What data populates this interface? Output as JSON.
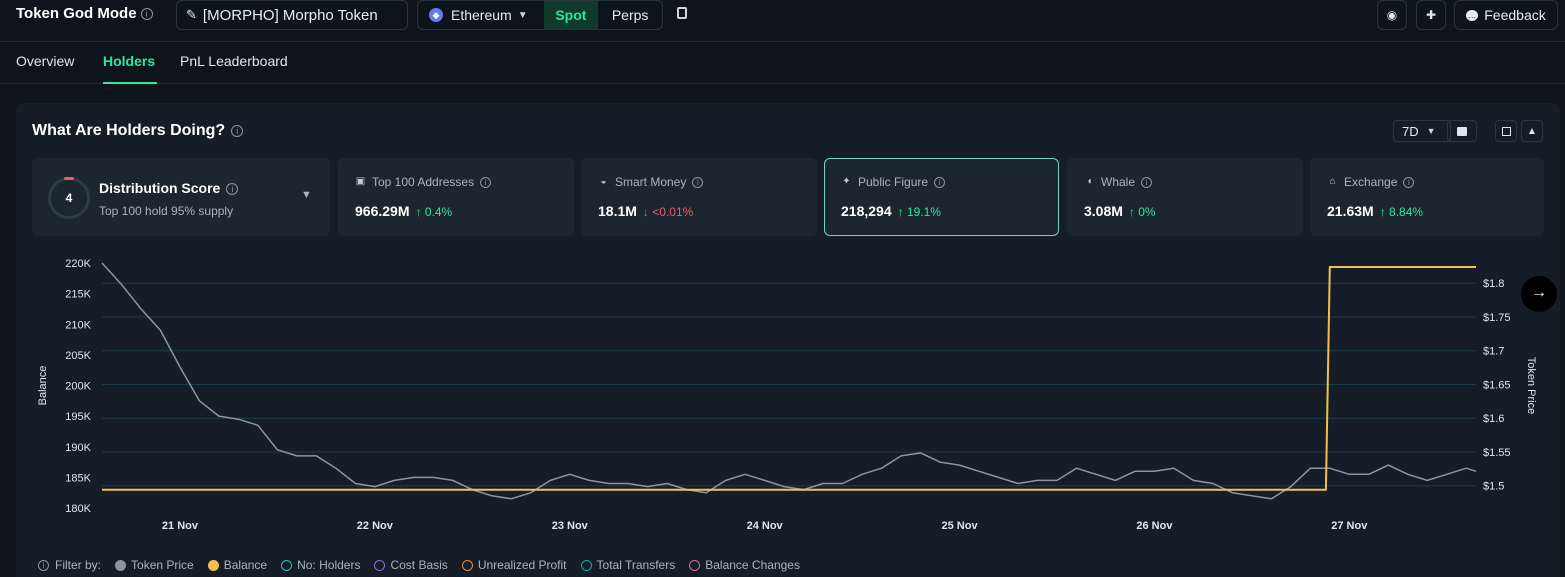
{
  "header": {
    "app_title": "Token God Mode",
    "token_label": "[MORPHO] Morpho Token",
    "chain": "Ethereum",
    "seg_spot": "Spot",
    "seg_perps": "Perps",
    "feedback_label": "Feedback"
  },
  "tabs": [
    {
      "label": "Overview"
    },
    {
      "label": "Holders"
    },
    {
      "label": "PnL Leaderboard"
    }
  ],
  "panel": {
    "title": "What Are Holders Doing?",
    "range": "7D",
    "distribution": {
      "score": "4",
      "title": "Distribution Score",
      "subtitle": "Top 100 hold 95% supply"
    },
    "cards": [
      {
        "label": "Top 100 Addresses",
        "value": "966.29M",
        "change": "↑ 0.4%",
        "dir": "up"
      },
      {
        "label": "Smart Money",
        "value": "18.1M",
        "change": "↓ <0.01%",
        "dir": "down"
      },
      {
        "label": "Public Figure",
        "value": "218,294",
        "change": "↑ 19.1%",
        "dir": "up"
      },
      {
        "label": "Whale",
        "value": "3.08M",
        "change": "↑ 0%",
        "dir": "up"
      },
      {
        "label": "Exchange",
        "value": "21.63M",
        "change": "↑ 8.84%",
        "dir": "up"
      }
    ],
    "filter_label": "Filter by:",
    "filters": [
      {
        "label": "Token Price",
        "color": "#8b96a3",
        "filled": true
      },
      {
        "label": "Balance",
        "color": "#f5c04a",
        "filled": true
      },
      {
        "label": "No: Holders",
        "color": "#2ec4b6",
        "filled": false
      },
      {
        "label": "Cost Basis",
        "color": "#8e6bd6",
        "filled": false
      },
      {
        "label": "Unrealized Profit",
        "color": "#f08a3c",
        "filled": false
      },
      {
        "label": "Total Transfers",
        "color": "#1fa39a",
        "filled": false
      },
      {
        "label": "Balance Changes",
        "color": "#d66ba8",
        "filled": false
      }
    ]
  },
  "chart_data": {
    "type": "line",
    "xlabel": "",
    "ylabel": "Balance",
    "y2label": "Token Price",
    "x_ticks": [
      "21 Nov",
      "22 Nov",
      "23 Nov",
      "24 Nov",
      "25 Nov",
      "26 Nov",
      "27 Nov"
    ],
    "y_ticks": [
      "220K",
      "215K",
      "210K",
      "205K",
      "200K",
      "195K",
      "190K",
      "185K",
      "180K"
    ],
    "y2_ticks": [
      "$1.8",
      "$1.75",
      "$1.7",
      "$1.65",
      "$1.6",
      "$1.55",
      "$1.5"
    ],
    "ylim": [
      180000,
      220000
    ],
    "y2lim": [
      1.467,
      1.83
    ],
    "x_range_days": [
      20.6,
      27.65
    ],
    "grid": true,
    "series": [
      {
        "name": "Token Price",
        "axis": "left",
        "color": "#8b96a3",
        "x": [
          20.6,
          20.7,
          20.8,
          20.9,
          21.0,
          21.1,
          21.2,
          21.3,
          21.4,
          21.5,
          21.6,
          21.7,
          21.8,
          21.9,
          22.0,
          22.1,
          22.2,
          22.3,
          22.4,
          22.5,
          22.6,
          22.7,
          22.8,
          22.9,
          23.0,
          23.1,
          23.2,
          23.3,
          23.4,
          23.5,
          23.6,
          23.7,
          23.8,
          23.9,
          24.0,
          24.1,
          24.2,
          24.3,
          24.4,
          24.5,
          24.6,
          24.7,
          24.8,
          24.9,
          25.0,
          25.1,
          25.2,
          25.3,
          25.4,
          25.5,
          25.6,
          25.7,
          25.8,
          25.9,
          26.0,
          26.1,
          26.2,
          26.3,
          26.4,
          26.5,
          26.6,
          26.7,
          26.8,
          26.9,
          27.0,
          27.1,
          27.2,
          27.3,
          27.4,
          27.5,
          27.6,
          27.65
        ],
        "y": [
          220000,
          216500,
          212500,
          209000,
          203000,
          197500,
          195000,
          194500,
          193500,
          189500,
          188500,
          188500,
          186500,
          184000,
          183500,
          184500,
          185000,
          185000,
          184500,
          183000,
          182000,
          181500,
          182500,
          184500,
          185500,
          184500,
          184000,
          184000,
          183500,
          184000,
          183000,
          182500,
          184500,
          185500,
          184500,
          183500,
          183000,
          184000,
          184000,
          185500,
          186500,
          188500,
          189000,
          187500,
          187000,
          186000,
          185000,
          184000,
          184500,
          184500,
          186500,
          185500,
          184500,
          186000,
          186000,
          186500,
          184500,
          184000,
          182500,
          182000,
          181500,
          183500,
          186500,
          186500,
          185500,
          185500,
          187000,
          185500,
          184500,
          185500,
          186500,
          186000
        ]
      },
      {
        "name": "Balance",
        "axis": "right",
        "color": "#f5c04a",
        "x": [
          20.6,
          26.88,
          26.9,
          27.65
        ],
        "y": [
          1.494,
          1.494,
          1.824,
          1.824
        ]
      }
    ]
  }
}
